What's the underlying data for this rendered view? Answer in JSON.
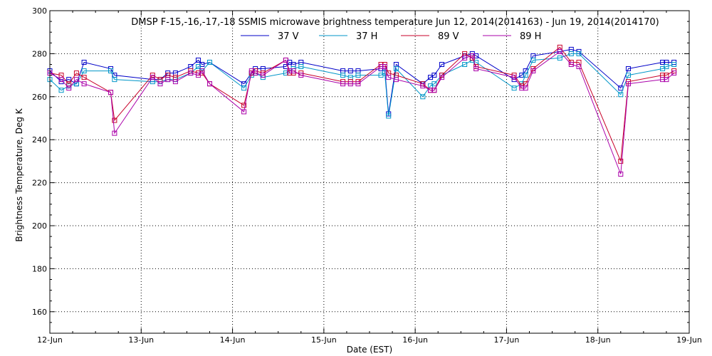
{
  "chart_data": {
    "type": "line",
    "title": "DMSP F-15,-16,-17,-18 SSMIS microwave brightness temperature Jun 12, 2014(2014163) - Jun 19, 2014(2014170)",
    "xlabel": "Date (EST)",
    "ylabel": "Brightness Temperature, Deg K",
    "xlim": [
      "2014-06-12T00:00",
      "2014-06-19T00:00"
    ],
    "ylim": [
      150,
      300
    ],
    "x_tick_labels": [
      "12-Jun",
      "13-Jun",
      "14-Jun",
      "15-Jun",
      "16-Jun",
      "17-Jun",
      "18-Jun",
      "19-Jun"
    ],
    "y_ticks": [
      160,
      180,
      200,
      220,
      240,
      260,
      280,
      300
    ],
    "grid": true,
    "legend_position": "top-center",
    "x": [
      "2014-06-12T00:00",
      "2014-06-12T03:00",
      "2014-06-12T05:00",
      "2014-06-12T07:00",
      "2014-06-12T09:00",
      "2014-06-12T16:00",
      "2014-06-12T17:00",
      "2014-06-13T03:00",
      "2014-06-13T05:00",
      "2014-06-13T07:00",
      "2014-06-13T09:00",
      "2014-06-13T13:00",
      "2014-06-13T15:00",
      "2014-06-13T16:00",
      "2014-06-13T18:00",
      "2014-06-14T03:00",
      "2014-06-14T05:00",
      "2014-06-14T06:00",
      "2014-06-14T08:00",
      "2014-06-14T14:00",
      "2014-06-14T15:00",
      "2014-06-14T16:00",
      "2014-06-14T18:00",
      "2014-06-15T05:00",
      "2014-06-15T07:00",
      "2014-06-15T09:00",
      "2014-06-15T15:00",
      "2014-06-15T16:00",
      "2014-06-15T17:00",
      "2014-06-15T19:00",
      "2014-06-16T02:00",
      "2014-06-16T04:00",
      "2014-06-16T05:00",
      "2014-06-16T07:00",
      "2014-06-16T13:00",
      "2014-06-16T15:00",
      "2014-06-16T16:00",
      "2014-06-17T02:00",
      "2014-06-17T04:00",
      "2014-06-17T05:00",
      "2014-06-17T07:00",
      "2014-06-17T14:00",
      "2014-06-17T17:00",
      "2014-06-17T19:00",
      "2014-06-18T06:00",
      "2014-06-18T08:00",
      "2014-06-18T17:00",
      "2014-06-18T18:00",
      "2014-06-18T20:00"
    ],
    "series": [
      {
        "name": "37 V",
        "color": "#0000c8",
        "values": [
          272,
          267,
          268,
          266,
          276,
          273,
          270,
          268,
          268,
          271,
          271,
          274,
          277,
          275,
          276,
          266,
          271,
          273,
          273,
          274,
          276,
          275,
          276,
          272,
          272,
          272,
          273,
          273,
          252,
          275,
          266,
          269,
          270,
          275,
          279,
          280,
          279,
          268,
          270,
          272,
          279,
          281,
          282,
          281,
          264,
          273,
          276,
          276,
          276
        ]
      },
      {
        "name": "37 H",
        "color": "#0096c8",
        "values": [
          268,
          263,
          265,
          266,
          272,
          272,
          268,
          267,
          267,
          268,
          268,
          271,
          274,
          272,
          276,
          264,
          270,
          271,
          269,
          271,
          272,
          273,
          274,
          270,
          269,
          270,
          270,
          271,
          251,
          273,
          260,
          265,
          266,
          270,
          275,
          277,
          276,
          264,
          266,
          270,
          277,
          278,
          280,
          280,
          261,
          270,
          273,
          274,
          275
        ]
      },
      {
        "name": "89 V",
        "color": "#c80028",
        "values": [
          271,
          270,
          266,
          271,
          269,
          262,
          249,
          270,
          268,
          270,
          269,
          272,
          271,
          271,
          266,
          256,
          271,
          272,
          271,
          277,
          271,
          271,
          271,
          267,
          267,
          267,
          275,
          275,
          271,
          270,
          266,
          263,
          263,
          270,
          280,
          278,
          274,
          270,
          265,
          266,
          273,
          283,
          276,
          276,
          230,
          267,
          270,
          270,
          272
        ]
      },
      {
        "name": "89 H",
        "color": "#aa00aa",
        "values": [
          271,
          268,
          264,
          268,
          266,
          262,
          243,
          269,
          266,
          268,
          267,
          271,
          270,
          272,
          266,
          253,
          272,
          271,
          270,
          277,
          272,
          272,
          270,
          266,
          266,
          266,
          274,
          274,
          269,
          268,
          265,
          263,
          263,
          269,
          278,
          279,
          273,
          269,
          264,
          264,
          272,
          281,
          275,
          274,
          224,
          266,
          268,
          268,
          271
        ]
      }
    ]
  }
}
